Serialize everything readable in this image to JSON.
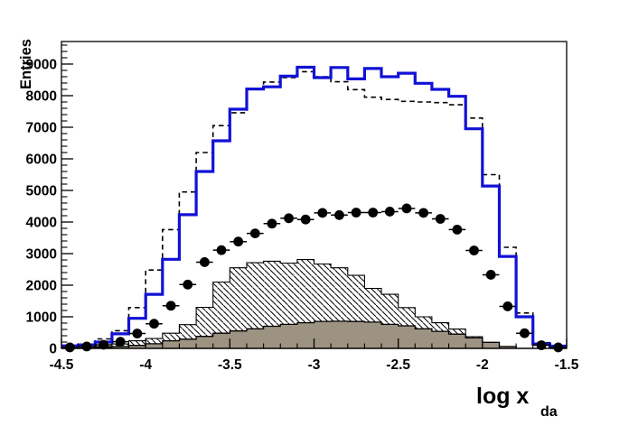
{
  "page": {
    "background": "#ffffff"
  },
  "chart_data": {
    "type": "bar",
    "subtype": "step-histogram-multi-series",
    "title": "",
    "grid": false,
    "legend": "none",
    "x": {
      "label": "log x",
      "label_subscript": "da",
      "min": -4.5,
      "max": -1.5,
      "n_bins": 30,
      "bin_width": 0.1,
      "major_tick_values": [
        -4.5,
        -4.0,
        -3.5,
        -3.0,
        -2.5,
        -2.0,
        -1.5
      ],
      "major_tick_labels": [
        "-4.5",
        "-4",
        "-3.5",
        "-3",
        "-2.5",
        "-2",
        "-1.5"
      ],
      "minor_tick_step": 0.1
    },
    "y": {
      "label": "Entries",
      "min": 0,
      "max": 9714,
      "major_tick_values": [
        0,
        1000,
        2000,
        3000,
        4000,
        5000,
        6000,
        7000,
        8000,
        9000
      ],
      "major_tick_labels": [
        "0",
        "1000",
        "2000",
        "3000",
        "4000",
        "5000",
        "6000",
        "7000",
        "8000",
        "9000"
      ],
      "minor_tick_step": 200
    },
    "colors": {
      "blue_line": "#1111d6",
      "black": "#000000",
      "gray_fill": "#9d9383",
      "frame": "#000000",
      "background": "#ffffff"
    },
    "series": [
      {
        "name": "hatched-histogram",
        "style": "hatched-step",
        "stroke": "#000000",
        "hatch_direction": "backslash",
        "values": [
          0,
          20,
          60,
          140,
          240,
          310,
          480,
          750,
          1300,
          2100,
          2550,
          2710,
          2760,
          2700,
          2810,
          2670,
          2550,
          2310,
          1900,
          1710,
          1290,
          1000,
          810,
          610,
          370,
          150,
          40,
          0,
          0,
          0
        ]
      },
      {
        "name": "gray-filled-histogram",
        "style": "filled-step",
        "fill": "#9d9383",
        "stroke": "#000000",
        "values": [
          0,
          10,
          30,
          60,
          95,
          145,
          240,
          290,
          380,
          480,
          550,
          620,
          700,
          760,
          810,
          855,
          860,
          850,
          830,
          760,
          715,
          620,
          540,
          450,
          330,
          190,
          60,
          0,
          0,
          0
        ]
      },
      {
        "name": "dashed-histogram",
        "style": "dashed-step",
        "stroke": "#000000",
        "values": [
          80,
          130,
          300,
          560,
          1290,
          2480,
          3760,
          4950,
          6200,
          7050,
          7460,
          8200,
          8430,
          8570,
          8760,
          8600,
          8440,
          8190,
          7950,
          7880,
          7820,
          7800,
          7780,
          7710,
          7290,
          5500,
          3200,
          1120,
          180,
          80
        ]
      },
      {
        "name": "blue-histogram",
        "style": "solid-step",
        "stroke": "#1111d6",
        "values": [
          80,
          110,
          200,
          460,
          950,
          1710,
          2820,
          4230,
          5600,
          6570,
          7570,
          8210,
          8280,
          8620,
          8900,
          8570,
          8890,
          8530,
          8860,
          8600,
          8710,
          8390,
          8200,
          7980,
          6950,
          5140,
          2910,
          1000,
          140,
          70
        ]
      },
      {
        "name": "data-points",
        "style": "markers-with-horizontal-error-bars",
        "color": "#000000",
        "marker": "filled-circle",
        "values": [
          30,
          60,
          115,
          210,
          470,
          780,
          1350,
          2020,
          2730,
          3110,
          3380,
          3640,
          3950,
          4120,
          4080,
          4290,
          4220,
          4300,
          4300,
          4330,
          4430,
          4290,
          4100,
          3760,
          3100,
          2330,
          1330,
          480,
          100,
          30
        ]
      }
    ]
  }
}
